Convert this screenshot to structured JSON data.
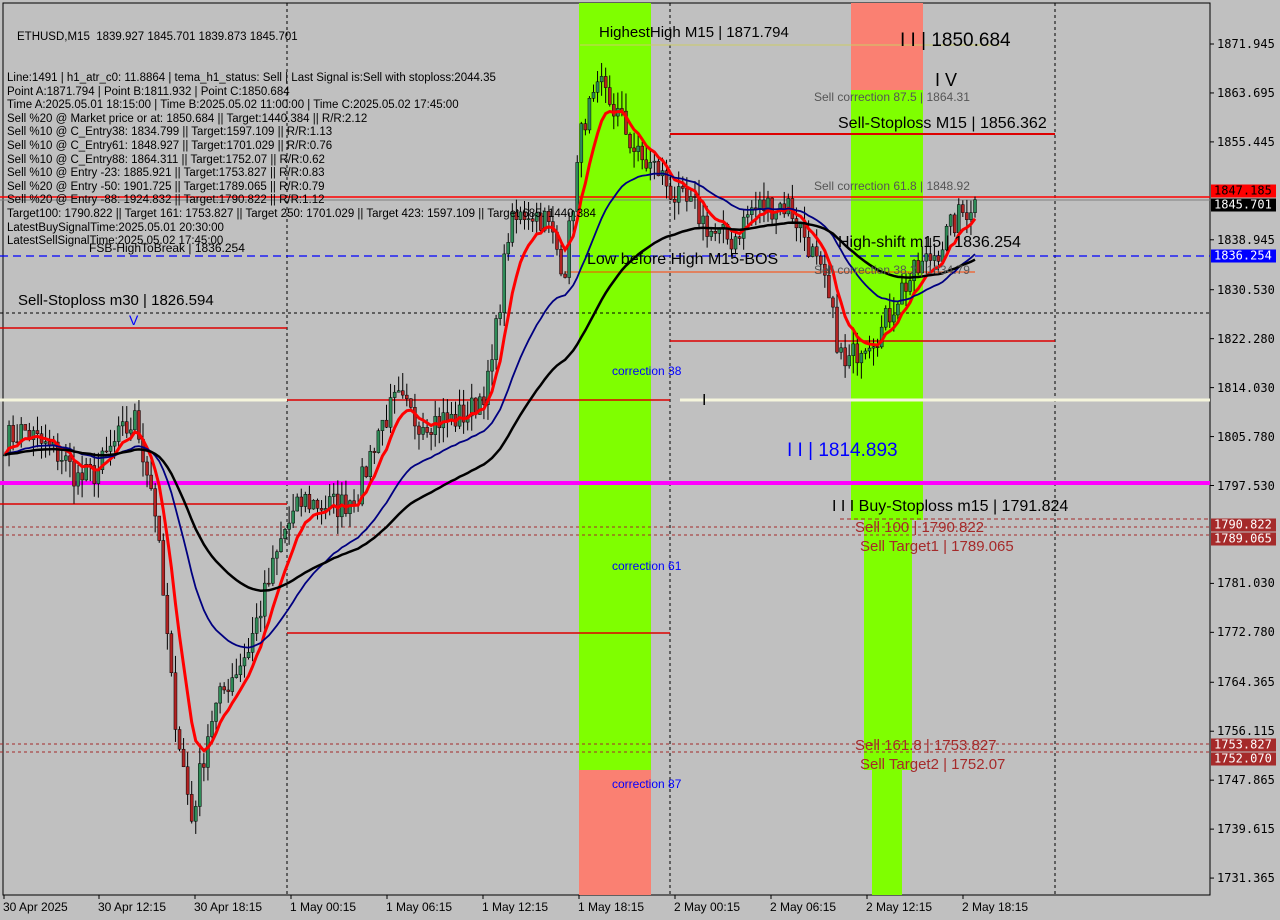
{
  "header": {
    "symbol_line": "ETHUSD,M15  1839.927 1845.701 1839.873 1845.701",
    "info_lines": [
      "Line:1491 | h1_atr_c0: 11.8864 | tema_h1_status: Sell | Last Signal is:Sell with stoploss:2044.35",
      "Point A:1871.794 | Point B:1811.932 | Point C:1850.684",
      "Time A:2025.05.01 18:15:00 | Time B:2025.05.02 11:00:00 | Time C:2025.05.02 17:45:00",
      "Sell %20 @ Market price or at: 1850.684 || Target:1440.384 || R/R:2.12",
      "Sell %10 @ C_Entry38: 1834.799 || Target:1597.109 || R/R:1.13",
      "Sell %10 @ C_Entry61: 1848.927 || Target:1701.029 || R/R:0.76",
      "Sell %10 @ C_Entry88: 1864.311 || Target:1752.07 || R/R:0.62",
      "Sell %10 @ Entry -23: 1885.921 || Target:1753.827 || R/R:0.83",
      "Sell %20 @ Entry -50: 1901.725 || Target:1789.065 || R/R:0.79",
      "Sell %20 @ Entry -88: 1924.832 || Target:1790.822 || R/R:1.12",
      "Target100: 1790.822 || Target 161: 1753.827 || Target 250: 1701.029 || Target 423: 1597.109 || Target 685: 1440.384",
      "LatestBuySignalTime:2025.05.01 20:30:00",
      "LatestSellSignalTime:2025.05.02 17:45:00"
    ]
  },
  "labels": {
    "highest_high": "HighestHigh    M15 | 1871.794",
    "wave3": "I I | 1850.684",
    "wave4": "I V",
    "sell_corr_875": "Sell correction 87.5 | 1864.31",
    "sell_stoploss_m15": "Sell-Stoploss M15 | 1856.362",
    "sell_corr_618": "Sell correction 61.8 | 1848.92",
    "high_shift": "High-shift m15 | 1836.254",
    "fsb": "FSB-HighToBreak | 1836.254",
    "low_before_high": "Low before High  M15-BOS",
    "sell_corr_382": "Sell correction 38.2 | 1834.79",
    "sell_stoploss_m30": "Sell-Stoploss m30 | 1826.594",
    "v_mark": "V",
    "correction38": "correction 38",
    "correction61": "correction 61",
    "correction87": "correction 87",
    "wave1": "I",
    "wave2": "I I | 1814.893",
    "buy_stoploss": "I I I  Buy-Stoploss m15 | 1791.824",
    "sell100": "Sell 100 | 1790.822",
    "sell_target1": "Sell Target1 | 1789.065",
    "sell1618": "Sell 161.8 | 1753.827",
    "sell_target2": "Sell Target2 | 1752.07"
  },
  "chart_data": {
    "type": "candlestick",
    "symbol": "ETHUSD",
    "timeframe": "M15",
    "ylim": [
      1727.5,
      1879.5
    ],
    "y_ticks": [
      "1871.945",
      "1863.695",
      "1855.445",
      "1838.945",
      "1830.530",
      "1822.280",
      "1814.030",
      "1805.780",
      "1797.530",
      "1781.030",
      "1772.780",
      "1764.365",
      "1756.115",
      "1747.865",
      "1739.615",
      "1731.365"
    ],
    "x_ticks": [
      "30 Apr 2025",
      "30 Apr 12:15",
      "30 Apr 18:15",
      "1 May 00:15",
      "1 May 06:15",
      "1 May 12:15",
      "1 May 18:15",
      "2 May 00:15",
      "2 May 06:15",
      "2 May 12:15",
      "2 May 18:15"
    ],
    "approx_closes": [
      1805.2,
      1806.9,
      1804.3,
      1802.6,
      1798.4,
      1800.1,
      1805.2,
      1808.6,
      1795.1,
      1761.4,
      1741.2,
      1757.9,
      1764.7,
      1769.7,
      1779.8,
      1790.0,
      1795.1,
      1794.2,
      1794.2,
      1796.7,
      1806.9,
      1811.9,
      1808.6,
      1808.6,
      1808.6,
      1810.2,
      1815.3,
      1840.6,
      1844.0,
      1842.3,
      1833.9,
      1859.2,
      1864.3,
      1859.2,
      1852.4,
      1850.7,
      1845.7,
      1844.0,
      1839.8,
      1838.9,
      1844.0,
      1844.8,
      1844.8,
      1838.9,
      1830.5,
      1817.0,
      1822.1,
      1823.7,
      1830.5,
      1833.9,
      1837.3,
      1842.3,
      1845.701
    ],
    "price_tags": [
      {
        "value": "1847.185",
        "color": "#ff0000",
        "text": "#000000"
      },
      {
        "value": "1845.701",
        "color": "#000000",
        "text": "#ffffff"
      },
      {
        "value": "1836.254",
        "color": "#0000ff",
        "text": "#ffffff"
      },
      {
        "value": "1790.822",
        "color": "#a52a2a",
        "text": "#ffffff"
      },
      {
        "value": "1789.065",
        "color": "#a52a2a",
        "text": "#ffffff"
      },
      {
        "value": "1753.827",
        "color": "#a52a2a",
        "text": "#ffffff"
      },
      {
        "value": "1752.070",
        "color": "#a52a2a",
        "text": "#ffffff"
      }
    ],
    "levels": {
      "buy_stoploss_m15": 1791.824,
      "sell_stoploss_m15": 1856.362,
      "sell_stoploss_m30": 1826.594,
      "fsb_high_to_break": 1836.254,
      "magenta": 1797.9
    },
    "colors": {
      "fast_ma": "#ff0000",
      "mid_ma": "#000080",
      "slow_ma": "#000000",
      "zone_green": "#7fff00",
      "zone_red": "#fa8072",
      "magenta": "#ff00ff"
    }
  }
}
